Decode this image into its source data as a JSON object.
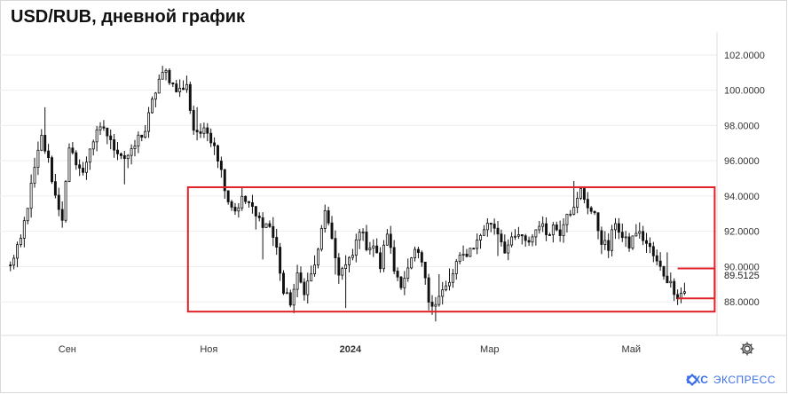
{
  "chart_data": {
    "type": "candlestick",
    "title": "USD/RUB, дневной график",
    "x_tick_labels": [
      {
        "label": "Сен",
        "date": "2023-09-01",
        "bold": false
      },
      {
        "label": "Ноя",
        "date": "2023-11-01",
        "bold": false
      },
      {
        "label": "2024",
        "date": "2024-01-01",
        "bold": true
      },
      {
        "label": "Мар",
        "date": "2024-03-01",
        "bold": false
      },
      {
        "label": "Май",
        "date": "2024-05-01",
        "bold": false
      }
    ],
    "y_tick_labels": [
      "102.0000",
      "100.0000",
      "98.0000",
      "96.0000",
      "94.0000",
      "92.0000",
      "90.0000",
      "88.0000"
    ],
    "y_ticks": [
      102,
      100,
      98,
      96,
      94,
      92,
      90,
      88
    ],
    "ylim": [
      86.1,
      103.3
    ],
    "xlim": [
      "2023-08-03",
      "2024-06-07"
    ],
    "last_price": 89.5125,
    "last_price_label": "89.5125",
    "x_start": "2023-08-06",
    "x_end": "2024-05-24",
    "close_path": [
      90.0,
      90.4,
      91.5,
      93.5,
      95.5,
      97.3,
      96.0,
      94.0,
      92.8,
      96.5,
      96.0,
      95.2,
      96.8,
      97.5,
      97.9,
      97.0,
      96.6,
      96.2,
      96.4,
      97.3,
      97.7,
      99.3,
      100.6,
      101.0,
      100.3,
      100.0,
      100.2,
      97.8,
      97.6,
      97.6,
      97.0,
      95.4,
      93.8,
      93.2,
      93.8,
      93.6,
      92.8,
      92.5,
      92.3,
      91.0,
      88.5,
      88.0,
      89.4,
      88.7,
      89.5,
      90.8,
      93.3,
      91.3,
      89.7,
      90.0,
      90.6,
      92.2,
      91.2,
      91.2,
      90.0,
      92.0,
      89.8,
      89.1,
      89.8,
      90.8,
      90.2,
      88.1,
      88.0,
      88.6,
      89.0,
      90.2,
      90.6,
      91.0,
      91.4,
      92.2,
      92.5,
      92.0,
      91.0,
      91.4,
      91.8,
      91.3,
      91.7,
      92.5,
      91.9,
      92.3,
      92.0,
      93.2,
      93.2,
      94.3,
      93.5,
      92.8,
      91.5,
      91.0,
      92.6,
      91.6,
      91.2,
      92.0,
      91.6,
      91.0,
      90.2,
      89.6,
      89.0,
      88.4,
      88.6
    ],
    "candles_per_segment": 2,
    "range_box": {
      "date_from": "2023-10-23",
      "date_to": "2024-06-06",
      "low": 87.45,
      "high": 94.5
    },
    "current_zone": {
      "date_from": "2024-05-21",
      "date_to": "2024-06-06",
      "low": 88.2,
      "high": 89.9
    },
    "colors": {
      "candle": "#111111",
      "highlight": "#e02128",
      "axis_text": "#333333",
      "grid": "#eeeeee",
      "brand": "#3a6ee8"
    }
  },
  "brand": {
    "name": "БКС",
    "sub": "ЭКСПРЕСС"
  },
  "controls": {
    "settings_icon": "gear-icon"
  }
}
